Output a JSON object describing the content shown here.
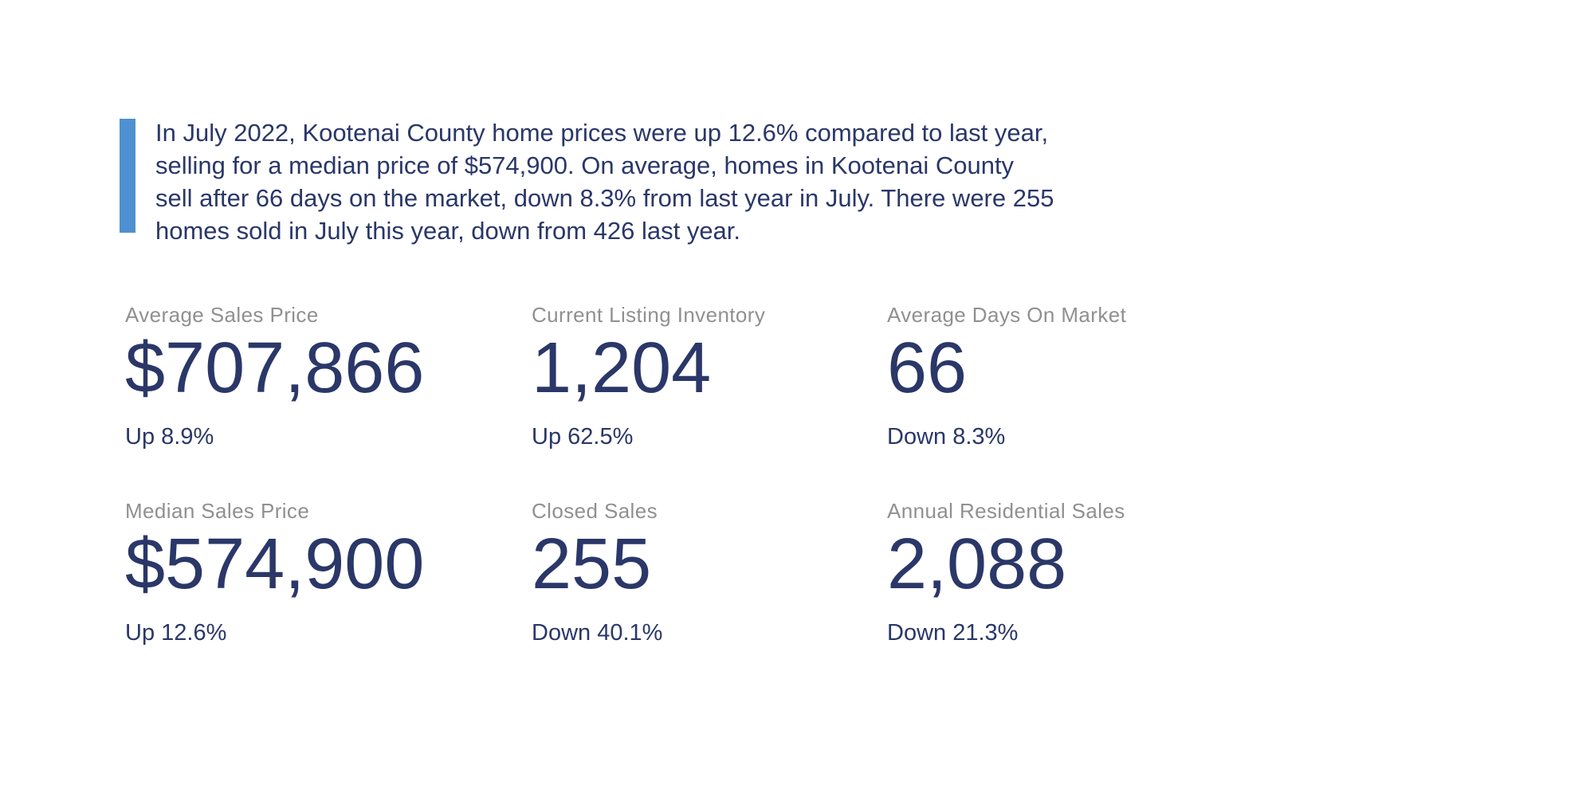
{
  "colors": {
    "accent_blue": "#4e90d1",
    "navy_text": "#2a3768",
    "label_gray": "#8f9092",
    "background": "#ffffff"
  },
  "summary": {
    "lines": [
      "In July 2022, Kootenai County home prices were up 12.6% compared to last year,",
      "selling for a median price of $574,900. On average, homes in Kootenai County",
      "sell after 66 days on the market, down 8.3% from last year in July. There were 255",
      "homes sold in July this year, down from 426 last year."
    ]
  },
  "stats": [
    {
      "label": "Average Sales Price",
      "value": "$707,866",
      "change": "Up 8.9%"
    },
    {
      "label": "Current Listing Inventory",
      "value": "1,204",
      "change": "Up 62.5%"
    },
    {
      "label": "Average Days On Market",
      "value": "66",
      "change": "Down 8.3%"
    },
    {
      "label": "Median Sales Price",
      "value": "$574,900",
      "change": "Up 12.6%"
    },
    {
      "label": "Closed Sales",
      "value": "255",
      "change": "Down 40.1%"
    },
    {
      "label": "Annual Residential Sales",
      "value": "2,088",
      "change": "Down 21.3%"
    }
  ]
}
